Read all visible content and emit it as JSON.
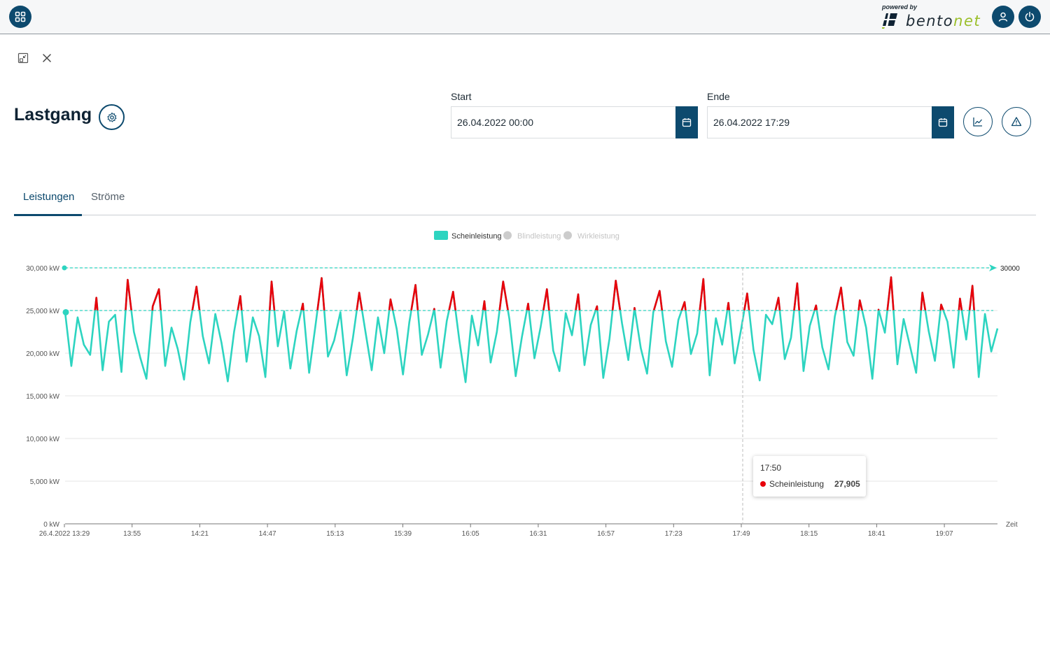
{
  "header": {
    "powered_by": "powered by",
    "brand_main": "bento",
    "brand_accent": "net",
    "icons": [
      "apps-grid-icon",
      "user-icon",
      "power-icon"
    ]
  },
  "window_controls": [
    "collapse-icon",
    "close-icon"
  ],
  "page": {
    "title": "Lastgang",
    "settings_icon": "gear-icon"
  },
  "filters": {
    "start_label": "Start",
    "start_value": "26.04.2022 00:00",
    "end_label": "Ende",
    "end_value": "26.04.2022 17:29",
    "actions": [
      "calendar-icon",
      "line-chart-icon",
      "warning-icon"
    ]
  },
  "tabs": [
    {
      "label": "Leistungen",
      "active": true
    },
    {
      "label": "Ströme",
      "active": false
    }
  ],
  "colors": {
    "primary": "#0d4a6e",
    "series": "#2dd4c0",
    "over_threshold": "#e8000b",
    "inactive_legend": "#cccccc"
  },
  "chart_data": {
    "type": "line",
    "legend": [
      {
        "name": "Scheinleistung",
        "active": true
      },
      {
        "name": "Blindleistung",
        "active": false
      },
      {
        "name": "Wirkleistung",
        "active": false
      }
    ],
    "legend_position": "top-center",
    "x_label": "Zeit",
    "x_ticks": [
      "26.4.2022 13:29",
      "13:55",
      "14:21",
      "14:47",
      "15:13",
      "15:39",
      "16:05",
      "16:31",
      "16:57",
      "17:23",
      "17:49",
      "18:15",
      "18:41",
      "19:07"
    ],
    "y_ticks": [
      "0 kW",
      "5,000 kW",
      "10,000 kW",
      "15,000 kW",
      "20,000 kW",
      "25,000 kW",
      "30,000 kW"
    ],
    "ylim": [
      0,
      30000
    ],
    "grid": true,
    "threshold_lines": [
      {
        "value": 30000,
        "label": "30000"
      },
      {
        "value": 25000,
        "label": ""
      }
    ],
    "series": [
      {
        "name": "Scheinleistung",
        "values": [
          24800,
          18500,
          24200,
          21000,
          19800,
          26500,
          18000,
          23700,
          24500,
          17800,
          28600,
          22500,
          19500,
          17000,
          25500,
          27500,
          18500,
          23000,
          20500,
          16900,
          23600,
          27800,
          22000,
          18800,
          24600,
          21200,
          16700,
          22500,
          26700,
          19000,
          24200,
          22000,
          17200,
          28400,
          20800,
          24900,
          18200,
          22600,
          25800,
          17700,
          23200,
          28800,
          19600,
          21500,
          24800,
          17400,
          21800,
          27100,
          22500,
          18000,
          24200,
          20000,
          26300,
          22800,
          17500,
          23600,
          28000,
          19800,
          22200,
          25200,
          18300,
          23800,
          27200,
          21500,
          16600,
          24400,
          20900,
          26100,
          18900,
          22500,
          28400,
          24000,
          17300,
          21900,
          25800,
          19400,
          23100,
          27500,
          20300,
          17900,
          24700,
          22100,
          26900,
          18600,
          23300,
          25500,
          17100,
          21700,
          28500,
          23500,
          19200,
          25300,
          20600,
          17600,
          24800,
          27300,
          21400,
          18400,
          23900,
          26000,
          19900,
          22300,
          28700,
          17400,
          24100,
          21000,
          25900,
          18800,
          22700,
          27000,
          20400,
          16800,
          24500,
          23400,
          26500,
          19300,
          21800,
          28200,
          17900,
          23200,
          25600,
          20700,
          18100,
          24300,
          27700,
          21300,
          19700,
          26200,
          23000,
          17000,
          25100,
          22400,
          28900,
          18700,
          24000,
          20900,
          17700,
          27100,
          22600,
          19100,
          25700,
          23700,
          18300,
          26400,
          21600,
          27900,
          17200,
          24600,
          20200,
          22900
        ],
        "highlighted_point": {
          "x": "17:50",
          "value": 27905
        }
      }
    ]
  },
  "tooltip": {
    "time": "17:50",
    "series_name": "Scheinleistung",
    "value": "27,905"
  }
}
